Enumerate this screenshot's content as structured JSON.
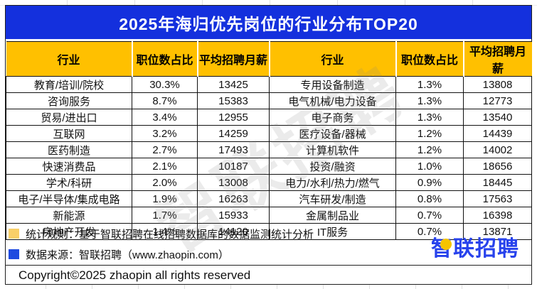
{
  "title": "2025年海归优先岗位的行业分布TOP20",
  "colors": {
    "banner_blue": "#1430dd",
    "header_yellow": "#ffc000",
    "logo_blue": "#2742ec",
    "legend_yellow": "#f8cf68",
    "legend_blue": "#1f4be0"
  },
  "table": {
    "headers": [
      "行业",
      "职位数占比",
      "平均招聘月薪",
      "行业",
      "职位数占比",
      "平均招聘月薪"
    ],
    "rows": [
      [
        "教育/培训/院校",
        "30.3%",
        "13425",
        "专用设备制造",
        "1.3%",
        "13808"
      ],
      [
        "咨询服务",
        "8.7%",
        "15383",
        "电气机械/电力设备",
        "1.3%",
        "12773"
      ],
      [
        "贸易/进出口",
        "3.4%",
        "12955",
        "电子商务",
        "1.3%",
        "13540"
      ],
      [
        "互联网",
        "3.2%",
        "14259",
        "医疗设备/器械",
        "1.2%",
        "14439"
      ],
      [
        "医药制造",
        "2.7%",
        "17493",
        "计算机软件",
        "1.2%",
        "14002"
      ],
      [
        "快速消费品",
        "2.1%",
        "10187",
        "投资/融资",
        "1.0%",
        "18656"
      ],
      [
        "学术/科研",
        "2.0%",
        "13008",
        "电力/水利/热力/燃气",
        "0.9%",
        "18445"
      ],
      [
        "电子/半导体/集成电路",
        "1.9%",
        "16263",
        "汽车研发/制造",
        "0.8%",
        "17563"
      ],
      [
        "新能源",
        "1.7%",
        "15933",
        "金属制品业",
        "0.7%",
        "16398"
      ],
      [
        "房地产开发",
        "1.4%",
        "14120",
        "IT服务",
        "0.7%",
        "13871"
      ]
    ]
  },
  "chart_data": {
    "type": "table",
    "title": "2025年海归优先岗位的行业分布TOP20",
    "columns": [
      "行业",
      "职位数占比",
      "平均招聘月薪"
    ],
    "rows": [
      {
        "industry": "教育/培训/院校",
        "share": "30.3%",
        "salary": 13425
      },
      {
        "industry": "咨询服务",
        "share": "8.7%",
        "salary": 15383
      },
      {
        "industry": "贸易/进出口",
        "share": "3.4%",
        "salary": 12955
      },
      {
        "industry": "互联网",
        "share": "3.2%",
        "salary": 14259
      },
      {
        "industry": "医药制造",
        "share": "2.7%",
        "salary": 17493
      },
      {
        "industry": "快速消费品",
        "share": "2.1%",
        "salary": 10187
      },
      {
        "industry": "学术/科研",
        "share": "2.0%",
        "salary": 13008
      },
      {
        "industry": "电子/半导体/集成电路",
        "share": "1.9%",
        "salary": 16263
      },
      {
        "industry": "新能源",
        "share": "1.7%",
        "salary": 15933
      },
      {
        "industry": "房地产开发",
        "share": "1.4%",
        "salary": 14120
      },
      {
        "industry": "专用设备制造",
        "share": "1.3%",
        "salary": 13808
      },
      {
        "industry": "电气机械/电力设备",
        "share": "1.3%",
        "salary": 12773
      },
      {
        "industry": "电子商务",
        "share": "1.3%",
        "salary": 13540
      },
      {
        "industry": "医疗设备/器械",
        "share": "1.2%",
        "salary": 14439
      },
      {
        "industry": "计算机软件",
        "share": "1.2%",
        "salary": 14002
      },
      {
        "industry": "投资/融资",
        "share": "1.0%",
        "salary": 18656
      },
      {
        "industry": "电力/水利/热力/燃气",
        "share": "0.9%",
        "salary": 18445
      },
      {
        "industry": "汽车研发/制造",
        "share": "0.8%",
        "salary": 17563
      },
      {
        "industry": "金属制品业",
        "share": "0.7%",
        "salary": 16398
      },
      {
        "industry": "IT服务",
        "share": "0.7%",
        "salary": 13871
      }
    ]
  },
  "footer": {
    "stat_rule": "统计规则：基于智联招聘在线招聘数据库的数据监测统计分析",
    "data_source": "数据来源：智联招聘（www.zhaopin.com）",
    "copyright": "Copyright©2025 zhaopin all rights reserved"
  },
  "watermark": "智联招聘",
  "logo_text": "智联招聘"
}
